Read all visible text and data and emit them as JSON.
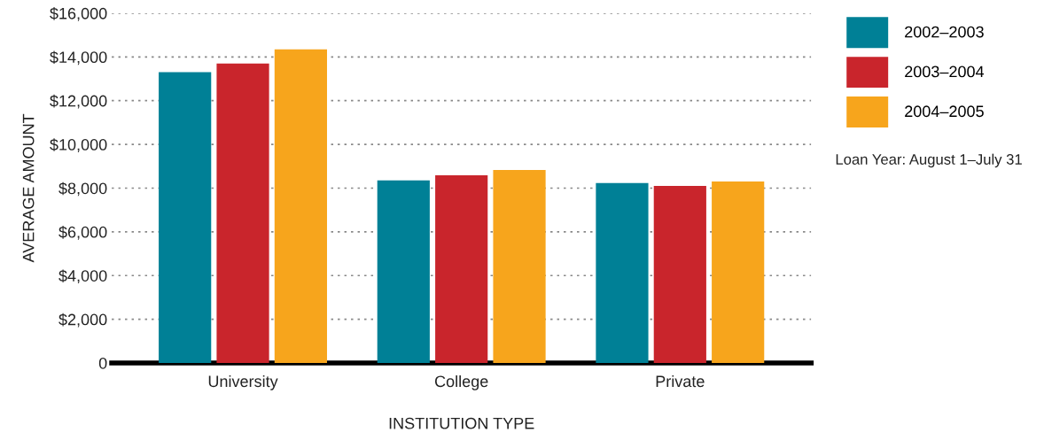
{
  "chart_data": {
    "type": "bar",
    "xlabel": "INSTITUTION TYPE",
    "ylabel": "AVERAGE AMOUNT",
    "categories": [
      "University",
      "College",
      "Private"
    ],
    "series": [
      {
        "name": "2002–2003",
        "color": "#008096",
        "values": [
          13300,
          8350,
          8230
        ]
      },
      {
        "name": "2003–2004",
        "color": "#c9252c",
        "values": [
          13700,
          8590,
          8100
        ]
      },
      {
        "name": "2004–2005",
        "color": "#f7a51c",
        "values": [
          14350,
          8830,
          8300
        ]
      }
    ],
    "ylim": [
      0,
      16000
    ],
    "yticks": [
      {
        "value": 0,
        "label": "0"
      },
      {
        "value": 2000,
        "label": "$2,000"
      },
      {
        "value": 4000,
        "label": "$4,000"
      },
      {
        "value": 6000,
        "label": "$6,000"
      },
      {
        "value": 8000,
        "label": "$8,000"
      },
      {
        "value": 10000,
        "label": "$10,000"
      },
      {
        "value": 12000,
        "label": "$12,000"
      },
      {
        "value": 14000,
        "label": "$14,000"
      },
      {
        "value": 16000,
        "label": "$16,000"
      }
    ],
    "grid": "y",
    "legend": "top right",
    "annotations": [
      "Loan Year: August 1–July 31"
    ]
  }
}
